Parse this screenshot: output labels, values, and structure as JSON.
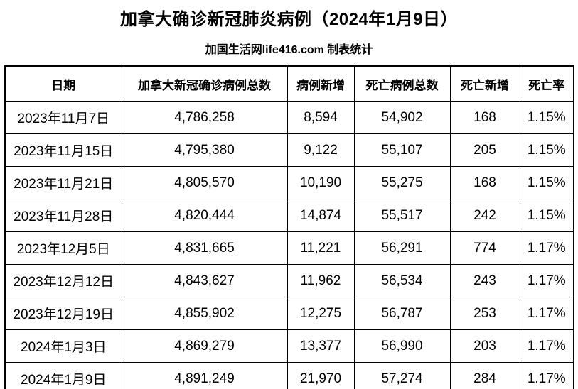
{
  "title": "加拿大确诊新冠肺炎病例（2024年1月9日）",
  "subtitle": "加国生活网life416.com 制表统计",
  "colors": {
    "text": "#000000",
    "border": "#000000",
    "background": "#ffffff"
  },
  "chart_data": {
    "type": "table",
    "title": "加拿大确诊新冠肺炎病例（2024年1月9日）",
    "columns": [
      "日期",
      "加拿大新冠确诊病例总数",
      "病例新增",
      "死亡病例总数",
      "死亡新增",
      "死亡率"
    ],
    "rows": [
      [
        "2023年11月7日",
        "4,786,258",
        "8,594",
        "54,902",
        "168",
        "1.15%"
      ],
      [
        "2023年11月15日",
        "4,795,380",
        "9,122",
        "55,107",
        "205",
        "1.15%"
      ],
      [
        "2023年11月21日",
        "4,805,570",
        "10,190",
        "55,275",
        "168",
        "1.15%"
      ],
      [
        "2023年11月28日",
        "4,820,444",
        "14,874",
        "55,517",
        "242",
        "1.15%"
      ],
      [
        "2023年12月5日",
        "4,831,665",
        "11,221",
        "56,291",
        "774",
        "1.17%"
      ],
      [
        "2023年12月12日",
        "4,843,627",
        "11,962",
        "56,534",
        "243",
        "1.17%"
      ],
      [
        "2023年12月19日",
        "4,855,902",
        "12,275",
        "56,787",
        "253",
        "1.17%"
      ],
      [
        "2024年1月3日",
        "4,869,279",
        "13,377",
        "56,990",
        "203",
        "1.17%"
      ],
      [
        "2024年1月9日",
        "4,891,249",
        "21,970",
        "57,274",
        "284",
        "1.17%"
      ]
    ],
    "grid": true,
    "legend": false
  }
}
